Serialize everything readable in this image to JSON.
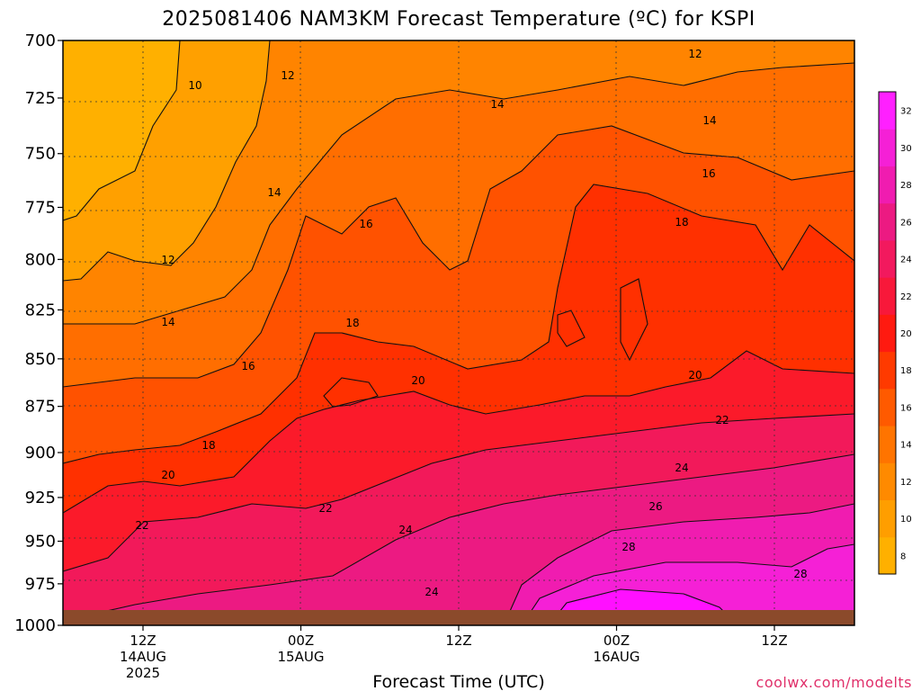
{
  "title": "2025081406 NAM3KM Forecast Temperature (ºC) for KSPI",
  "xlabel": "Forecast Time (UTC)",
  "credit": "coolwx.com/modelts",
  "chart_data": {
    "type": "heatmap",
    "title": "2025081406 NAM3KM Forecast Temperature (ºC) for KSPI",
    "xlabel": "Forecast Time (UTC)",
    "ylabel": "",
    "y_scale": "log-pressure, inverted (hPa)",
    "yticks": [
      700,
      725,
      750,
      775,
      800,
      825,
      850,
      875,
      900,
      925,
      950,
      975,
      1000
    ],
    "xticks": [
      {
        "hour": "12Z",
        "date": "14AUG",
        "year": "2025"
      },
      {
        "hour": "00Z",
        "date": "15AUG",
        "year": ""
      },
      {
        "hour": "12Z",
        "date": "",
        "year": ""
      },
      {
        "hour": "00Z",
        "date": "16AUG",
        "year": ""
      },
      {
        "hour": "12Z",
        "date": "",
        "year": ""
      }
    ],
    "colorbar": {
      "levels": [
        8,
        10,
        12,
        14,
        16,
        18,
        20,
        22,
        24,
        26,
        28,
        30,
        32
      ],
      "colors": [
        "#ffb000",
        "#ff9e00",
        "#ff8a00",
        "#ff7400",
        "#ff5a00",
        "#ff3a00",
        "#ff1a10",
        "#f8183a",
        "#f2195e",
        "#ec1a82",
        "#f01cb0",
        "#f520d6",
        "#ff20ff"
      ]
    },
    "grid": "dotted",
    "contour_interval": 2,
    "contour_labels": [
      {
        "value": "10"
      },
      {
        "value": "12"
      },
      {
        "value": "12"
      },
      {
        "value": "12"
      },
      {
        "value": "14"
      },
      {
        "value": "14"
      },
      {
        "value": "14"
      },
      {
        "value": "14"
      },
      {
        "value": "16"
      },
      {
        "value": "16"
      },
      {
        "value": "16"
      },
      {
        "value": "18"
      },
      {
        "value": "18"
      },
      {
        "value": "18"
      },
      {
        "value": "20"
      },
      {
        "value": "20"
      },
      {
        "value": "20"
      },
      {
        "value": "22"
      },
      {
        "value": "22"
      },
      {
        "value": "22"
      },
      {
        "value": "24"
      },
      {
        "value": "24"
      },
      {
        "value": "24"
      },
      {
        "value": "26"
      },
      {
        "value": "28"
      },
      {
        "value": "28"
      }
    ],
    "series": [
      {
        "profile": [
          {
            "p": 700,
            "t": 10.5
          },
          {
            "p": 750,
            "t": 11.2
          },
          {
            "p": 800,
            "t": 12.8
          },
          {
            "p": 850,
            "t": 15.8
          },
          {
            "p": 900,
            "t": 19.0
          },
          {
            "p": 950,
            "t": 22.5
          },
          {
            "p": 1000,
            "t": 24.0
          }
        ]
      }
    ]
  }
}
